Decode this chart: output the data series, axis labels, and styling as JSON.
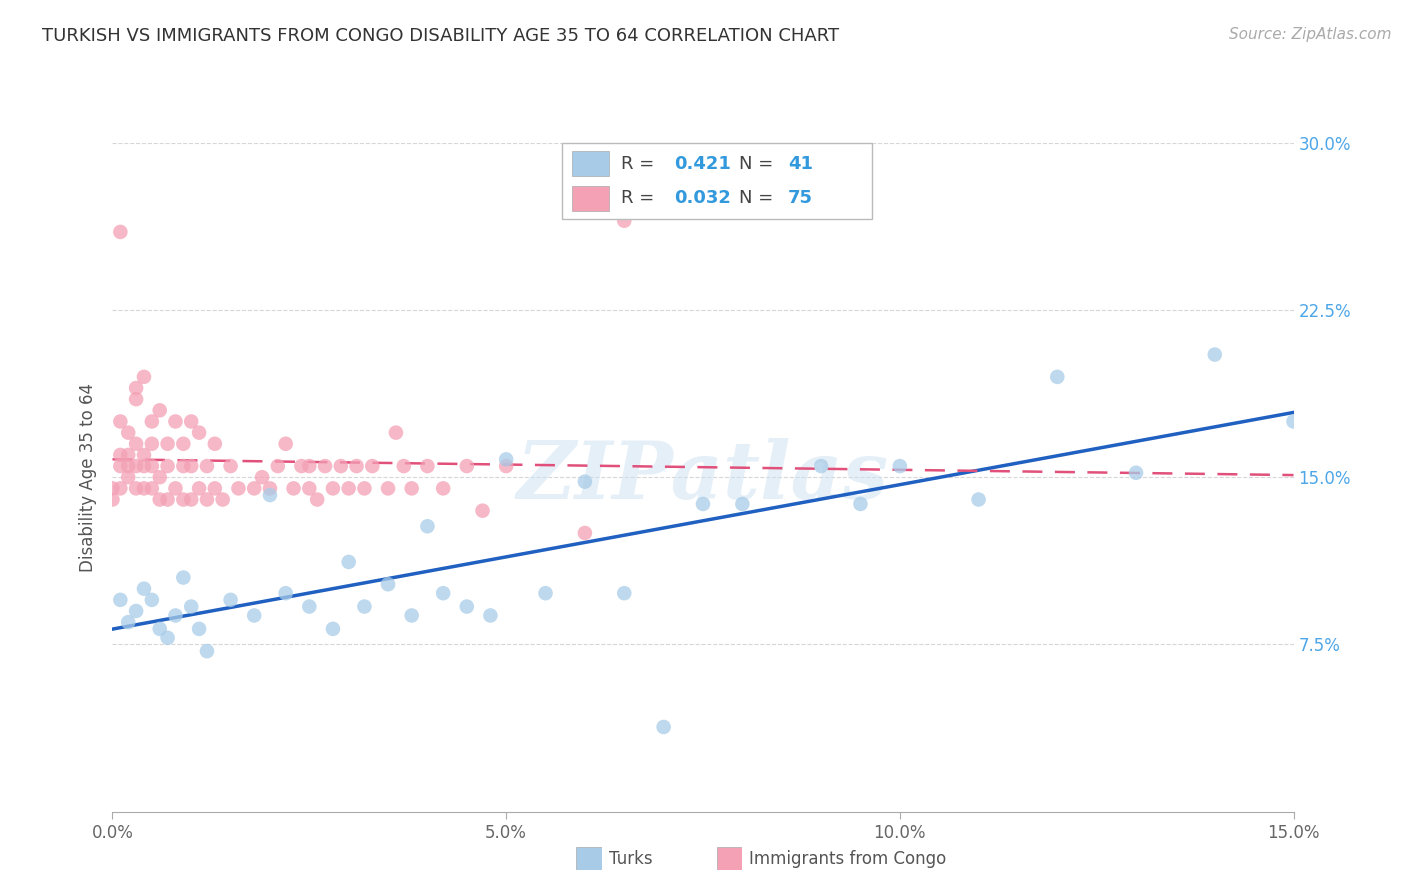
{
  "title": "TURKISH VS IMMIGRANTS FROM CONGO DISABILITY AGE 35 TO 64 CORRELATION CHART",
  "source": "Source: ZipAtlas.com",
  "ylabel": "Disability Age 35 to 64",
  "xlabel_turks": "Turks",
  "xlabel_congo": "Immigrants from Congo",
  "xmin": 0.0,
  "xmax": 0.15,
  "ymin": 0.0,
  "ymax": 0.3,
  "yticks": [
    0.075,
    0.15,
    0.225,
    0.3
  ],
  "ytick_labels": [
    "7.5%",
    "15.0%",
    "22.5%",
    "30.0%"
  ],
  "xticks": [
    0.0,
    0.05,
    0.1,
    0.15
  ],
  "xtick_labels": [
    "0.0%",
    "5.0%",
    "10.0%",
    "15.0%"
  ],
  "R_turks": 0.421,
  "N_turks": 41,
  "R_congo": 0.032,
  "N_congo": 75,
  "color_turks": "#a8cce8",
  "color_congo": "#f4a0b5",
  "line_color_turks": "#2060c0",
  "line_color_congo": "#e0507a",
  "turks_x": [
    0.001,
    0.002,
    0.003,
    0.004,
    0.005,
    0.006,
    0.007,
    0.008,
    0.009,
    0.01,
    0.011,
    0.012,
    0.015,
    0.018,
    0.02,
    0.022,
    0.025,
    0.028,
    0.03,
    0.032,
    0.035,
    0.038,
    0.04,
    0.042,
    0.045,
    0.048,
    0.05,
    0.055,
    0.06,
    0.065,
    0.07,
    0.075,
    0.08,
    0.09,
    0.095,
    0.1,
    0.11,
    0.12,
    0.13,
    0.14,
    0.15
  ],
  "turks_y": [
    0.095,
    0.085,
    0.09,
    0.1,
    0.095,
    0.082,
    0.078,
    0.088,
    0.105,
    0.092,
    0.082,
    0.072,
    0.095,
    0.088,
    0.142,
    0.098,
    0.092,
    0.082,
    0.112,
    0.092,
    0.102,
    0.088,
    0.128,
    0.098,
    0.092,
    0.088,
    0.158,
    0.098,
    0.148,
    0.098,
    0.038,
    0.138,
    0.138,
    0.155,
    0.138,
    0.155,
    0.14,
    0.195,
    0.152,
    0.205,
    0.175
  ],
  "congo_x": [
    0.0,
    0.0,
    0.001,
    0.001,
    0.001,
    0.001,
    0.002,
    0.002,
    0.002,
    0.002,
    0.003,
    0.003,
    0.003,
    0.003,
    0.003,
    0.004,
    0.004,
    0.004,
    0.004,
    0.005,
    0.005,
    0.005,
    0.005,
    0.006,
    0.006,
    0.006,
    0.007,
    0.007,
    0.007,
    0.008,
    0.008,
    0.009,
    0.009,
    0.009,
    0.01,
    0.01,
    0.01,
    0.011,
    0.011,
    0.012,
    0.012,
    0.013,
    0.013,
    0.014,
    0.015,
    0.016,
    0.018,
    0.019,
    0.02,
    0.021,
    0.022,
    0.023,
    0.024,
    0.025,
    0.025,
    0.026,
    0.027,
    0.028,
    0.029,
    0.03,
    0.031,
    0.032,
    0.033,
    0.035,
    0.036,
    0.037,
    0.038,
    0.04,
    0.042,
    0.045,
    0.047,
    0.05,
    0.06,
    0.065,
    0.001
  ],
  "congo_y": [
    0.14,
    0.145,
    0.145,
    0.155,
    0.16,
    0.175,
    0.15,
    0.155,
    0.16,
    0.17,
    0.145,
    0.155,
    0.165,
    0.185,
    0.19,
    0.145,
    0.155,
    0.16,
    0.195,
    0.145,
    0.155,
    0.165,
    0.175,
    0.14,
    0.15,
    0.18,
    0.14,
    0.155,
    0.165,
    0.145,
    0.175,
    0.14,
    0.155,
    0.165,
    0.14,
    0.155,
    0.175,
    0.145,
    0.17,
    0.14,
    0.155,
    0.145,
    0.165,
    0.14,
    0.155,
    0.145,
    0.145,
    0.15,
    0.145,
    0.155,
    0.165,
    0.145,
    0.155,
    0.145,
    0.155,
    0.14,
    0.155,
    0.145,
    0.155,
    0.145,
    0.155,
    0.145,
    0.155,
    0.145,
    0.17,
    0.155,
    0.145,
    0.155,
    0.145,
    0.155,
    0.135,
    0.155,
    0.125,
    0.265,
    0.26
  ],
  "watermark": "ZIPatlas",
  "background_color": "#ffffff"
}
